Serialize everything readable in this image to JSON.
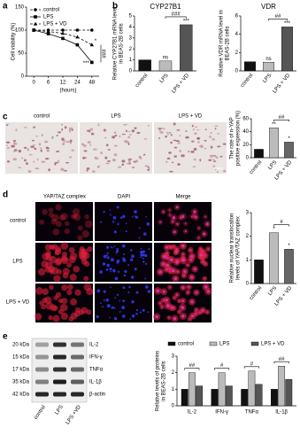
{
  "panels": [
    "a",
    "b",
    "c",
    "d",
    "e"
  ],
  "chart_data": [
    {
      "type": "line",
      "ylabel": [
        "Cell viability (%)"
      ],
      "xlabel": "(hours)",
      "categories": [
        "0",
        "6",
        "12",
        "24",
        "48"
      ],
      "ylim": [
        0,
        150
      ],
      "yticks": [
        0,
        50,
        100,
        150
      ],
      "series": [
        {
          "name": "control",
          "color": "#000000",
          "marker": "circle",
          "dash": true,
          "values": [
            100,
            100,
            100,
            100,
            100
          ]
        },
        {
          "name": "LPS",
          "color": "#000000",
          "marker": "square",
          "dash": false,
          "values": [
            100,
            92,
            82,
            68,
            30
          ]
        },
        {
          "name": "LPS + VD",
          "color": "#000000",
          "marker": "triangle",
          "dash": true,
          "values": [
            100,
            97,
            93,
            85,
            68
          ]
        }
      ],
      "annotations": [
        "*",
        "***",
        "###"
      ]
    },
    {
      "type": "bar",
      "title": "CYP27B1",
      "ylabel": [
        "Relative CYP27B1 mRNA level",
        "in BEAS-2B cells"
      ],
      "categories": [
        "control",
        "LPS",
        "LPS + VD"
      ],
      "values": [
        1,
        0.9,
        4.2
      ],
      "colors": [
        "#111111",
        "#bbbbbb",
        "#555555"
      ],
      "ylim": [
        0,
        5
      ],
      "yticks": [
        0,
        1,
        2,
        3,
        4,
        5
      ],
      "annotations": [
        "ns",
        "***",
        "###"
      ]
    },
    {
      "type": "bar",
      "title": "VDR",
      "ylabel": [
        "Relative VDR mRNA level in",
        "BEAS-2B cells"
      ],
      "categories": [
        "control",
        "LPS",
        "LPS + VD"
      ],
      "values": [
        1,
        0.95,
        4.8
      ],
      "colors": [
        "#111111",
        "#bbbbbb",
        "#555555"
      ],
      "ylim": [
        0,
        6
      ],
      "yticks": [
        0,
        2,
        4,
        6
      ],
      "annotations": [
        "ns",
        "***",
        "##"
      ]
    },
    {
      "type": "bar",
      "ylabel": [
        "The rate of n-YAP",
        "positive expression (%)"
      ],
      "categories": [
        "control",
        "LPS",
        "LPS + VD"
      ],
      "values": [
        13,
        46,
        24
      ],
      "colors": [
        "#111111",
        "#bbbbbb",
        "#666666"
      ],
      "ylim": [
        0,
        60
      ],
      "yticks": [
        0,
        20,
        40,
        60
      ],
      "annotations": [
        "**",
        "*",
        "##"
      ]
    },
    {
      "type": "bar",
      "ylabel": [
        "Relative nuclear translocation",
        "levels of YAP/TAZ complex"
      ],
      "categories": [
        "control",
        "LPS",
        "LPS + VD"
      ],
      "values": [
        1,
        2.15,
        1.45
      ],
      "colors": [
        "#111111",
        "#bbbbbb",
        "#666666"
      ],
      "ylim": [
        0,
        3
      ],
      "yticks": [
        0,
        1,
        2,
        3
      ],
      "annotations": [
        "*",
        "*",
        "#"
      ]
    },
    {
      "type": "grouped_bar",
      "ylabel": [
        "Relative levels of proteins",
        "in BEAS-2B cells"
      ],
      "categories": [
        "IL-2",
        "IFN-γ",
        "TNFα",
        "IL-1β"
      ],
      "ylim": [
        0,
        3
      ],
      "yticks": [
        0,
        1,
        2,
        3
      ],
      "series": [
        {
          "name": "control",
          "color": "#111111",
          "values": [
            1,
            1,
            1,
            1
          ]
        },
        {
          "name": "LPS",
          "color": "#bbbbbb",
          "values": [
            2.0,
            2.0,
            2.1,
            2.4
          ]
        },
        {
          "name": "LPS + VD",
          "color": "#555555",
          "values": [
            1.2,
            1.2,
            1.3,
            1.6
          ]
        }
      ],
      "annotations": [
        "##",
        "#",
        "#",
        "##"
      ]
    }
  ],
  "images_c": {
    "labels": [
      "control",
      "LPS",
      "LPS + VD"
    ]
  },
  "images_d": {
    "columns": [
      "YAP/TAZ complex",
      "DAPI",
      "Merge"
    ],
    "rows": [
      "control",
      "LPS",
      "LPS + VD"
    ]
  },
  "blot": {
    "kda": [
      "20 kDa",
      "15 kDa",
      "17 kDa",
      "35 kDa",
      "42 kDa"
    ],
    "proteins": [
      "IL-2",
      "IFN-γ",
      "TNFα",
      "IL-1β",
      "β-actin"
    ],
    "lanes": [
      "control",
      "LPS",
      "LPS +VD"
    ]
  }
}
